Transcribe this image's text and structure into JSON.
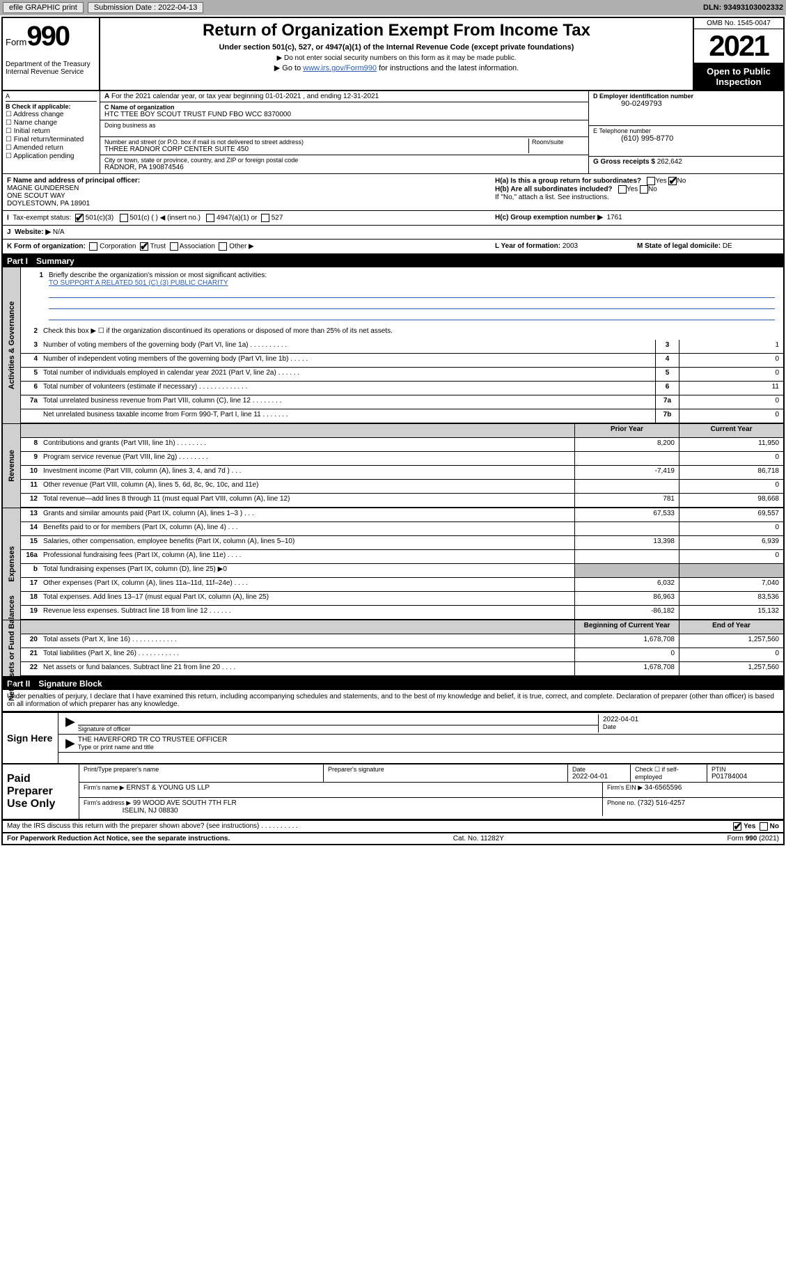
{
  "top": {
    "efile": "efile GRAPHIC print",
    "sub_label": "Submission Date : 2022-04-13",
    "dln": "DLN: 93493103002332"
  },
  "header": {
    "form": "Form",
    "num": "990",
    "dept": "Department of the Treasury Internal Revenue Service",
    "title": "Return of Organization Exempt From Income Tax",
    "sub": "Under section 501(c), 527, or 4947(a)(1) of the Internal Revenue Code (except private foundations)",
    "note1": "▶ Do not enter social security numbers on this form as it may be made public.",
    "note2_pre": "▶ Go to ",
    "note2_link": "www.irs.gov/Form990",
    "note2_post": " for instructions and the latest information.",
    "omb": "OMB No. 1545-0047",
    "year": "2021",
    "inspection": "Open to Public Inspection"
  },
  "A": {
    "text": "For the 2021 calendar year, or tax year beginning 01-01-2021   , and ending 12-31-2021"
  },
  "B": {
    "label": "B Check if applicable:",
    "opts": [
      "Address change",
      "Name change",
      "Initial return",
      "Final return/terminated",
      "Amended return",
      "Application pending"
    ]
  },
  "C": {
    "name_lbl": "C Name of organization",
    "name": "HTC TTEE BOY SCOUT TRUST FUND FBO WCC 8370000",
    "dba_lbl": "Doing business as",
    "dba": "",
    "addr_lbl": "Number and street (or P.O. box if mail is not delivered to street address)",
    "room_lbl": "Room/suite",
    "addr": "THREE RADNOR CORP CENTER SUITE 450",
    "city_lbl": "City or town, state or province, country, and ZIP or foreign postal code",
    "city": "RADNOR, PA  190874546"
  },
  "D": {
    "lbl": "D Employer identification number",
    "val": "90-0249793"
  },
  "E": {
    "lbl": "E Telephone number",
    "val": "(610) 995-8770"
  },
  "G": {
    "lbl": "G Gross receipts $",
    "val": "262,642"
  },
  "F": {
    "lbl": "F Name and address of principal officer:",
    "name": "MAGNE GUNDERSEN",
    "addr1": "ONE SCOUT WAY",
    "addr2": "DOYLESTOWN, PA  18901"
  },
  "H": {
    "a": "H(a)  Is this a group return for subordinates?",
    "b": "H(b)  Are all subordinates included?",
    "note": "If \"No,\" attach a list. See instructions.",
    "c": "H(c)  Group exemption number ▶",
    "cval": "1761",
    "yes": "Yes",
    "no": "No"
  },
  "I": {
    "lbl": "Tax-exempt status:",
    "opts": [
      "501(c)(3)",
      "501(c) (  ) ◀ (insert no.)",
      "4947(a)(1) or",
      "527"
    ]
  },
  "J": {
    "lbl": "Website: ▶",
    "val": "N/A"
  },
  "K": {
    "lbl": "K Form of organization:",
    "opts": [
      "Corporation",
      "Trust",
      "Association",
      "Other ▶"
    ]
  },
  "L": {
    "lbl": "L Year of formation:",
    "val": "2003"
  },
  "M": {
    "lbl": "M State of legal domicile:",
    "val": "DE"
  },
  "part1": {
    "label": "Part I",
    "title": "Summary"
  },
  "mission": {
    "q": "Briefly describe the organization's mission or most significant activities:",
    "text": "TO SUPPORT A RELATED 501 (C) (3) PUBLIC CHARITY"
  },
  "line2": "Check this box ▶ ☐  if the organization discontinued its operations or disposed of more than 25% of its net assets.",
  "gov_rows": [
    {
      "n": "3",
      "d": "Number of voting members of the governing body (Part VI, line 1a)  .    .    .    .    .    .    .    .    .    .",
      "box": "3",
      "v": "1"
    },
    {
      "n": "4",
      "d": "Number of independent voting members of the governing body (Part VI, line 1b)  .    .    .    .    .",
      "box": "4",
      "v": "0"
    },
    {
      "n": "5",
      "d": "Total number of individuals employed in calendar year 2021 (Part V, line 2a)  .    .    .    .    .    .",
      "box": "5",
      "v": "0"
    },
    {
      "n": "6",
      "d": "Total number of volunteers (estimate if necessary)  .    .    .    .    .    .    .    .    .    .    .    .    .",
      "box": "6",
      "v": "11"
    },
    {
      "n": "7a",
      "d": "Total unrelated business revenue from Part VIII, column (C), line 12  .    .    .    .    .    .    .    .",
      "box": "7a",
      "v": "0"
    },
    {
      "n": "",
      "d": "Net unrelated business taxable income from Form 990-T, Part I, line 11  .    .    .    .    .    .    .",
      "box": "7b",
      "v": "0"
    }
  ],
  "col_hdr": {
    "prior": "Prior Year",
    "current": "Current Year"
  },
  "rev_rows": [
    {
      "n": "8",
      "d": "Contributions and grants (Part VIII, line 1h)   .    .    .    .    .    .    .    .",
      "p": "8,200",
      "c": "11,950"
    },
    {
      "n": "9",
      "d": "Program service revenue (Part VIII, line 2g)   .    .    .    .    .    .    .    .",
      "p": "",
      "c": "0"
    },
    {
      "n": "10",
      "d": "Investment income (Part VIII, column (A), lines 3, 4, and 7d )   .    .    .",
      "p": "-7,419",
      "c": "86,718"
    },
    {
      "n": "11",
      "d": "Other revenue (Part VIII, column (A), lines 5, 6d, 8c, 9c, 10c, and 11e)",
      "p": "",
      "c": "0"
    },
    {
      "n": "12",
      "d": "Total revenue—add lines 8 through 11 (must equal Part VIII, column (A), line 12)",
      "p": "781",
      "c": "98,668"
    }
  ],
  "exp_rows": [
    {
      "n": "13",
      "d": "Grants and similar amounts paid (Part IX, column (A), lines 1–3 )   .    .    .",
      "p": "67,533",
      "c": "69,557"
    },
    {
      "n": "14",
      "d": "Benefits paid to or for members (Part IX, column (A), line 4)   .    .    .",
      "p": "",
      "c": "0"
    },
    {
      "n": "15",
      "d": "Salaries, other compensation, employee benefits (Part IX, column (A), lines 5–10)",
      "p": "13,398",
      "c": "6,939"
    },
    {
      "n": "16a",
      "d": "Professional fundraising fees (Part IX, column (A), line 11e)   .    .    .    .",
      "p": "",
      "c": "0"
    },
    {
      "n": "b",
      "d": "Total fundraising expenses (Part IX, column (D), line 25) ▶0",
      "p": "GRAY",
      "c": "GRAY"
    },
    {
      "n": "17",
      "d": "Other expenses (Part IX, column (A), lines 11a–11d, 11f–24e)   .    .    .    .",
      "p": "6,032",
      "c": "7,040"
    },
    {
      "n": "18",
      "d": "Total expenses. Add lines 13–17 (must equal Part IX, column (A), line 25)",
      "p": "86,963",
      "c": "83,536"
    },
    {
      "n": "19",
      "d": "Revenue less expenses. Subtract line 18 from line 12   .    .    .    .    .    .",
      "p": "-86,182",
      "c": "15,132"
    }
  ],
  "net_hdr": {
    "begin": "Beginning of Current Year",
    "end": "End of Year"
  },
  "net_rows": [
    {
      "n": "20",
      "d": "Total assets (Part X, line 16)   .    .    .    .    .    .    .    .    .    .    .    .",
      "p": "1,678,708",
      "c": "1,257,560"
    },
    {
      "n": "21",
      "d": "Total liabilities (Part X, line 26)   .    .    .    .    .    .    .    .    .    .    .",
      "p": "0",
      "c": "0"
    },
    {
      "n": "22",
      "d": "Net assets or fund balances. Subtract line 21 from line 20   .    .    .    .",
      "p": "1,678,708",
      "c": "1,257,560"
    }
  ],
  "sides": {
    "gov": "Activities & Governance",
    "rev": "Revenue",
    "exp": "Expenses",
    "net": "Net Assets or Fund Balances"
  },
  "part2": {
    "label": "Part II",
    "title": "Signature Block"
  },
  "declare": "Under penalties of perjury, I declare that I have examined this return, including accompanying schedules and statements, and to the best of my knowledge and belief, it is true, correct, and complete. Declaration of preparer (other than officer) is based on all information of which preparer has any knowledge.",
  "sign": {
    "label": "Sign Here",
    "sig_lbl": "Signature of officer",
    "date_lbl": "Date",
    "date": "2022-04-01",
    "name": "THE HAVERFORD TR CO TRUSTEE  OFFICER",
    "name_lbl": "Type or print name and title"
  },
  "paid": {
    "label": "Paid Preparer Use Only",
    "h1": "Print/Type preparer's name",
    "h2": "Preparer's signature",
    "h3": "Date",
    "date": "2022-04-01",
    "h4": "Check ☐ if self-employed",
    "h5": "PTIN",
    "ptin": "P01784004",
    "firm_lbl": "Firm's name     ▶",
    "firm": "ERNST & YOUNG US LLP",
    "ein_lbl": "Firm's EIN ▶",
    "ein": "34-6565596",
    "addr_lbl": "Firm's address ▶",
    "addr1": "99 WOOD AVE SOUTH 7TH FLR",
    "addr2": "ISELIN, NJ  08830",
    "phone_lbl": "Phone no.",
    "phone": "(732) 516-4257"
  },
  "discuss": {
    "q": "May the IRS discuss this return with the preparer shown above? (see instructions)   .    .    .    .    .    .    .    .    .    .",
    "yes": "Yes",
    "no": "No"
  },
  "footer": {
    "left": "For Paperwork Reduction Act Notice, see the separate instructions.",
    "mid": "Cat. No. 11282Y",
    "right": "Form 990 (2021)"
  }
}
